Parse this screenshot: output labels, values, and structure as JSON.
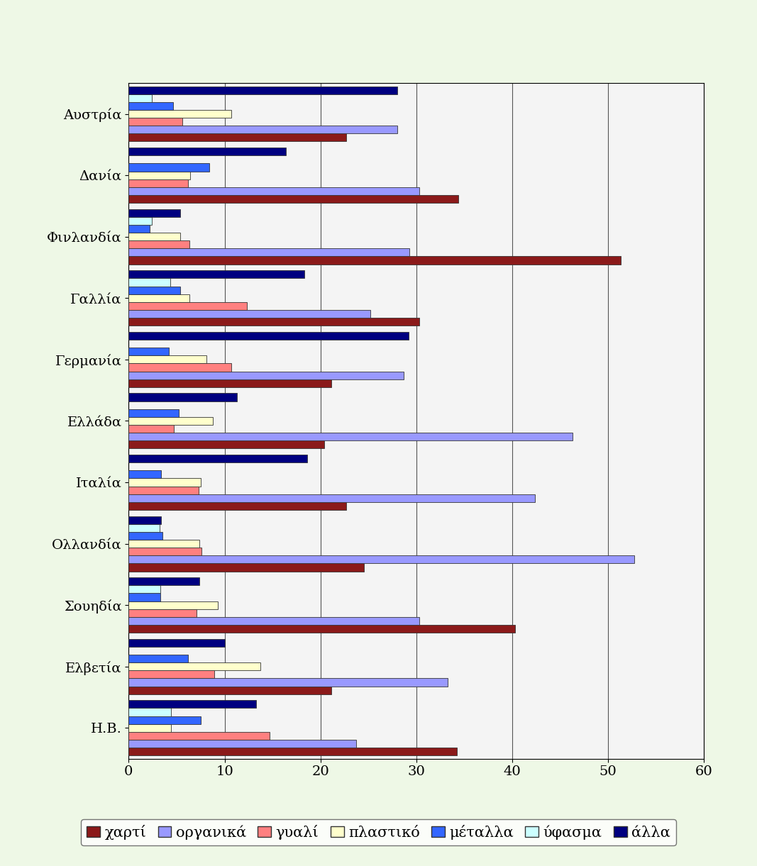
{
  "chart_data": {
    "type": "bar",
    "orientation": "horizontal",
    "categories": [
      "Αυστρία",
      "Δανία",
      "Φινλανδία",
      "Γαλλία",
      "Γερμανία",
      "Ελλάδα",
      "Ιταλία",
      "Ολλανδία",
      "Σουηδία",
      "Ελβετία",
      "Η.Β."
    ],
    "series": [
      {
        "name": "χαρτί",
        "color": "#8b1a1a",
        "values": [
          22.7,
          34.4,
          51.3,
          30.3,
          21.1,
          20.4,
          22.7,
          24.5,
          40.3,
          21.1,
          34.2
        ]
      },
      {
        "name": "οργανικά",
        "color": "#9999ff",
        "values": [
          28.0,
          30.3,
          29.3,
          25.2,
          28.7,
          46.3,
          42.4,
          52.7,
          30.3,
          33.3,
          23.7
        ]
      },
      {
        "name": "γυαλί",
        "color": "#ff8080",
        "values": [
          5.6,
          6.2,
          6.3,
          12.3,
          10.7,
          4.7,
          7.3,
          7.6,
          7.1,
          8.9,
          14.7
        ]
      },
      {
        "name": "πλαστικό",
        "color": "#ffffcc",
        "values": [
          10.7,
          6.4,
          5.4,
          6.3,
          8.1,
          8.8,
          7.5,
          7.4,
          9.3,
          13.7,
          4.4
        ]
      },
      {
        "name": "μέταλλα",
        "color": "#3366ff",
        "values": [
          4.6,
          8.4,
          2.2,
          5.4,
          4.2,
          5.2,
          3.4,
          3.5,
          3.3,
          6.2,
          7.5
        ]
      },
      {
        "name": "ύφασμα",
        "color": "#ccffff",
        "values": [
          2.4,
          null,
          2.4,
          4.3,
          null,
          null,
          null,
          3.2,
          3.3,
          null,
          4.4
        ]
      },
      {
        "name": "άλλα",
        "color": "#000080",
        "values": [
          28.0,
          16.4,
          5.4,
          18.3,
          29.2,
          11.3,
          18.6,
          3.4,
          7.4,
          10.0,
          13.3
        ]
      }
    ],
    "xlim": [
      0,
      60
    ],
    "xticks": [
      0,
      10,
      20,
      30,
      40,
      50,
      60
    ],
    "grid": true,
    "legend": "bottom"
  }
}
